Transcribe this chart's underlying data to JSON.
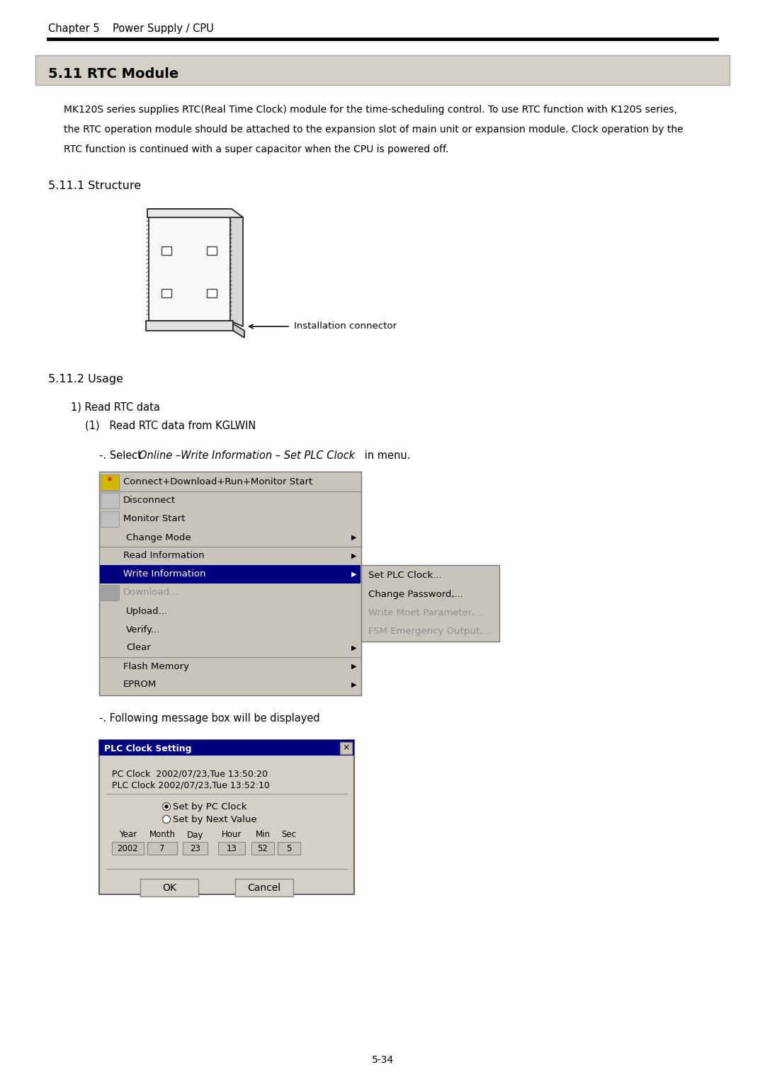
{
  "page_title": "Chapter 5    Power Supply / CPU",
  "section_title": "5.11 RTC Module",
  "section_bg": "#d4d0c8",
  "body_lines": [
    "MK120S series supplies RTC(Real Time Clock) module for the time-scheduling control. To use RTC function with K120S series,",
    "the RTC operation module should be attached to the expansion slot of main unit or expansion module. Clock operation by the",
    "RTC function is continued with a super capacitor when the CPU is powered off."
  ],
  "sub_section_1": "5.11.1 Structure",
  "connector_label": "Installation connector",
  "sub_section_2": "5.11.2 Usage",
  "usage_1": "1) Read RTC data",
  "usage_1_1": "(1)   Read RTC data from KGLWIN",
  "select_prefix": "-. Select ",
  "select_italic": "Online –Write Information – Set PLC Clock",
  "select_suffix": " in menu.",
  "menu_items": [
    {
      "text": "Connect+Download+Run+Monitor Start",
      "has_icon": true,
      "icon_color": "#c8b400",
      "highlighted": false,
      "sep_after": true,
      "arrow": false,
      "grayed": false
    },
    {
      "text": "Disconnect",
      "has_icon": true,
      "icon_color": "#c0c0c0",
      "highlighted": false,
      "sep_after": false,
      "arrow": false,
      "grayed": false
    },
    {
      "text": "Monitor Start",
      "has_icon": true,
      "icon_color": "#c0c0c0",
      "highlighted": false,
      "sep_after": false,
      "arrow": false,
      "grayed": false
    },
    {
      "text": "Change Mode",
      "has_icon": false,
      "highlighted": false,
      "sep_after": true,
      "arrow": true,
      "grayed": false,
      "extra_indent": true
    },
    {
      "text": "Read Information",
      "has_icon": false,
      "highlighted": false,
      "sep_after": false,
      "arrow": true,
      "grayed": false,
      "extra_indent": false
    },
    {
      "text": "Write Information",
      "has_icon": false,
      "highlighted": true,
      "sep_after": false,
      "arrow": true,
      "grayed": false,
      "extra_indent": false
    },
    {
      "text": "Download...",
      "has_icon": true,
      "icon_color": "#a0a0a0",
      "highlighted": false,
      "sep_after": false,
      "arrow": false,
      "grayed": true
    },
    {
      "text": "Upload...",
      "has_icon": false,
      "highlighted": false,
      "sep_after": false,
      "arrow": false,
      "grayed": false,
      "extra_indent": true
    },
    {
      "text": "Verify...",
      "has_icon": false,
      "highlighted": false,
      "sep_after": false,
      "arrow": false,
      "grayed": false,
      "extra_indent": true
    },
    {
      "text": "Clear",
      "has_icon": false,
      "highlighted": false,
      "sep_after": true,
      "arrow": true,
      "grayed": false,
      "extra_indent": true
    },
    {
      "text": "Flash Memory",
      "has_icon": false,
      "highlighted": false,
      "sep_after": false,
      "arrow": true,
      "grayed": false,
      "extra_indent": false
    },
    {
      "text": "EPROM",
      "has_icon": false,
      "highlighted": false,
      "sep_after": false,
      "arrow": true,
      "grayed": false,
      "extra_indent": false
    }
  ],
  "submenu_items": [
    {
      "text": "Set PLC Clock...",
      "grayed": false
    },
    {
      "text": "Change Password,...",
      "grayed": false
    },
    {
      "text": "Write Mnet Parameter,...",
      "grayed": true
    },
    {
      "text": "FSM Emergency Output,...",
      "grayed": true
    }
  ],
  "following_text": "-. Following message box will be displayed",
  "dialog_title": "PLC Clock Setting",
  "dialog_pc_clock": "PC Clock  2002/07/23,Tue 13:50:20",
  "dialog_plc_clock": "PLC Clock 2002/07/23,Tue 13:52:10",
  "radio1": "Set by PC Clock",
  "radio2": "Set by Next Value",
  "field_labels": [
    "Year",
    "Month",
    "Day",
    "Hour",
    "Min",
    "Sec"
  ],
  "field_values": [
    "2002",
    "7",
    "23",
    "13",
    "52",
    "5"
  ],
  "btn_ok": "OK",
  "btn_cancel": "Cancel",
  "page_number": "5-34",
  "bg_color": "#ffffff",
  "menu_bg": "#c8c4bc",
  "menu_highlighted_bg": "#000080",
  "menu_highlighted_fg": "#ffffff",
  "menu_text_color": "#000000",
  "menu_grayed_color": "#909090",
  "dialog_bg": "#d4d0c8",
  "dialog_title_bg": "#000080",
  "dialog_title_fg": "#ffffff"
}
